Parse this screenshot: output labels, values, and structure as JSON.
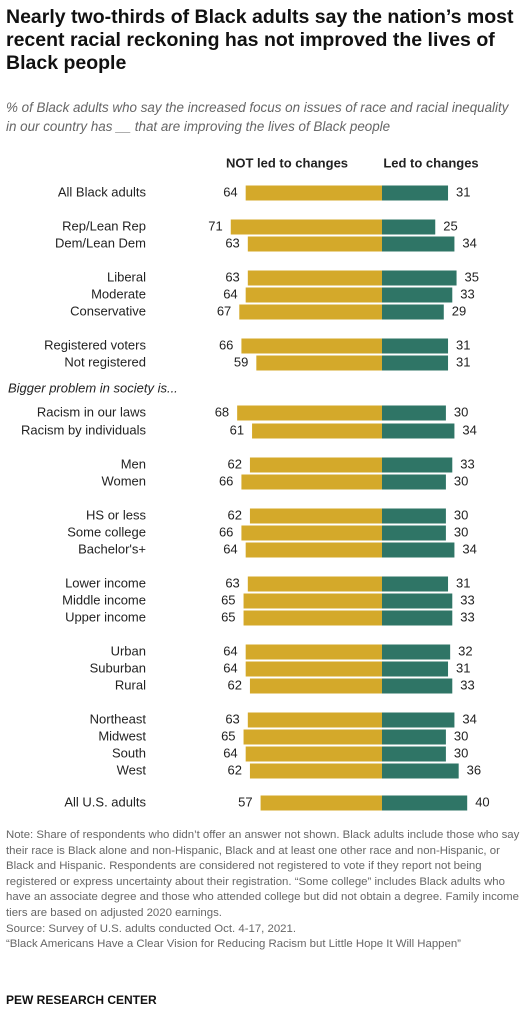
{
  "chart_data": {
    "type": "diverging-bar",
    "title": "Nearly two-thirds of Black adults say the nation’s most recent racial reckoning has not improved the lives of Black people",
    "subtitle": "% of Black adults who say the increased focus on issues of race and racial inequality in our country has __ that are improving the lives of Black people",
    "group_label": "Bigger problem in society is...",
    "categories": [
      "All Black adults",
      "Rep/Lean Rep",
      "Dem/Lean Dem",
      "Liberal",
      "Moderate",
      "Conservative",
      "Registered voters",
      "Not registered",
      "Racism in our laws",
      "Racism by individuals",
      "Men",
      "Women",
      "HS or less",
      "Some college",
      "Bachelor's+",
      "Lower income",
      "Middle income",
      "Upper income",
      "Urban",
      "Suburban",
      "Rural",
      "Northeast",
      "Midwest",
      "South",
      "West",
      "All U.S. adults"
    ],
    "series": [
      {
        "name": "NOT led to changes",
        "color": "#d4a92a",
        "values": [
          64,
          71,
          63,
          63,
          64,
          67,
          66,
          59,
          68,
          61,
          62,
          66,
          62,
          66,
          64,
          63,
          65,
          65,
          64,
          64,
          62,
          63,
          65,
          64,
          62,
          57
        ]
      },
      {
        "name": "Led to changes",
        "color": "#2f7566",
        "values": [
          31,
          25,
          34,
          35,
          33,
          29,
          31,
          31,
          30,
          34,
          33,
          30,
          30,
          30,
          34,
          31,
          33,
          33,
          32,
          31,
          33,
          34,
          30,
          30,
          36,
          40
        ]
      }
    ],
    "note": "Note: Share of respondents who didn’t offer an answer not shown. Black adults include those who say their race is Black alone and non-Hispanic, Black and at least one other race and non-Hispanic, or Black and Hispanic. Respondents are considered not registered to vote if they report not being registered or express uncertainty about their registration. “Some college” includes Black adults who have an associate degree and those who attended college but did not obtain a degree. Family income tiers are based on adjusted 2020 earnings.",
    "source": "Source: Survey of U.S. adults conducted Oct. 4-17, 2021.",
    "citation": "“Black Americans Have a Clear Vision for Reducing Racism but Little Hope It Will Happen”",
    "credit": "PEW RESEARCH CENTER"
  }
}
